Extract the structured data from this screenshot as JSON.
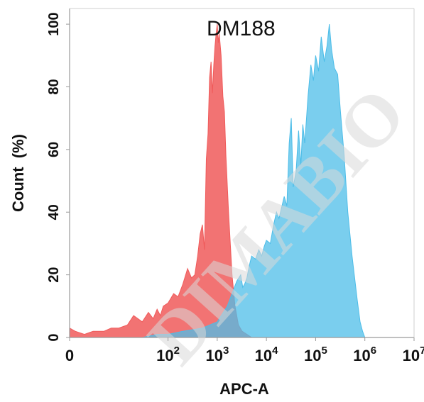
{
  "chart_data": {
    "type": "area",
    "title": "DM188",
    "xlabel": "APC-A",
    "ylabel": "Count  (%)",
    "xscale": "log",
    "xlim": [
      1,
      10000000
    ],
    "ylim": [
      0,
      105
    ],
    "yticks": [
      0,
      20,
      40,
      60,
      80,
      100
    ],
    "xticks": [
      {
        "base": "0",
        "exp": ""
      },
      {
        "base": "10",
        "exp": "2"
      },
      {
        "base": "10",
        "exp": "3"
      },
      {
        "base": "10",
        "exp": "4"
      },
      {
        "base": "10",
        "exp": "5"
      },
      {
        "base": "10",
        "exp": "6"
      },
      {
        "base": "10",
        "exp": "7"
      }
    ],
    "series": [
      {
        "color": "#f05b5b",
        "x": [
          1,
          1.3,
          2,
          3,
          5,
          7,
          10,
          15,
          20,
          30,
          40,
          50,
          60,
          70,
          80,
          100,
          130,
          160,
          200,
          250,
          300,
          350,
          400,
          450,
          500,
          550,
          600,
          650,
          700,
          750,
          800,
          850,
          900,
          950,
          1000,
          1050,
          1100,
          1200,
          1300,
          1400,
          1500,
          1700,
          2000,
          2300,
          2700,
          3200,
          4000,
          5000
        ],
        "y": [
          3,
          2,
          1,
          2,
          2,
          3,
          3,
          4,
          7,
          5,
          8,
          6,
          9,
          7,
          10,
          11,
          14,
          13,
          17,
          22,
          19,
          20,
          26,
          33,
          36,
          28,
          57,
          65,
          83,
          88,
          78,
          87,
          93,
          97,
          100,
          94,
          97,
          90,
          77,
          72,
          58,
          40,
          20,
          10,
          4,
          2,
          1,
          0
        ]
      },
      {
        "color": "#4dbde8",
        "x": [
          30,
          60,
          100,
          200,
          500,
          1000,
          1600,
          2000,
          2500,
          3000,
          3300,
          3600,
          4000,
          4500,
          5000,
          6000,
          7000,
          8000,
          9000,
          10000,
          12000,
          14000,
          16000,
          18000,
          20000,
          23000,
          26000,
          29000,
          32000,
          35000,
          40000,
          45000,
          50000,
          55000,
          60000,
          70000,
          80000,
          90000,
          100000,
          115000,
          130000,
          150000,
          170000,
          190000,
          210000,
          240000,
          280000,
          320000,
          380000,
          450000,
          550000,
          700000,
          800000,
          900000,
          1000000
        ],
        "y": [
          0,
          1,
          1,
          2,
          3,
          5,
          10,
          14,
          18,
          20,
          16,
          17,
          19,
          23,
          26,
          25,
          28,
          26,
          29,
          31,
          30,
          36,
          40,
          38,
          41,
          45,
          42,
          62,
          70,
          48,
          53,
          66,
          55,
          68,
          62,
          77,
          87,
          82,
          90,
          85,
          96,
          88,
          93,
          100,
          92,
          86,
          84,
          72,
          58,
          40,
          26,
          12,
          5,
          2,
          0
        ]
      }
    ]
  },
  "watermark": "DIMABIO"
}
